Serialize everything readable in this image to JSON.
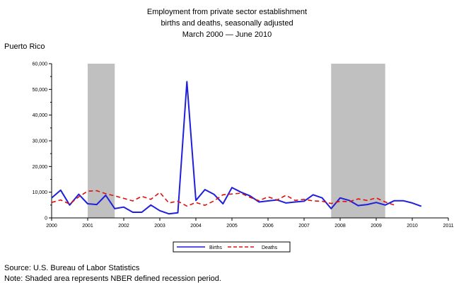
{
  "chart_data": {
    "type": "line",
    "title": [
      "Employment from private sector establishment",
      "births and deaths, seasonally adjusted",
      "March 2000 — June 2010"
    ],
    "region": "Puerto Rico",
    "ylim": [
      0,
      60000
    ],
    "yticks": [
      0,
      10000,
      20000,
      30000,
      40000,
      50000,
      60000
    ],
    "ytick_labels": [
      "0",
      "10,000",
      "20,000",
      "30,000",
      "40,000",
      "50,000",
      "60,000"
    ],
    "xlim": [
      2000,
      2011
    ],
    "xticks": [
      2000,
      2001,
      2002,
      2003,
      2004,
      2005,
      2006,
      2007,
      2008,
      2009,
      2010,
      2011
    ],
    "xtick_labels": [
      "2000",
      "2001",
      "2002",
      "2003",
      "2004",
      "2005",
      "2006",
      "2007",
      "2008",
      "2009",
      "2010",
      "2011"
    ],
    "recessions": [
      [
        2001.0,
        2001.75
      ],
      [
        2007.75,
        2009.25
      ]
    ],
    "legend_position": "bottom",
    "series": [
      {
        "name": "Births",
        "color": "#1f1fdc",
        "style": "solid",
        "x": [
          2000.0,
          2000.25,
          2000.5,
          2000.75,
          2001.0,
          2001.25,
          2001.5,
          2001.75,
          2002.0,
          2002.25,
          2002.5,
          2002.75,
          2003.0,
          2003.25,
          2003.5,
          2003.75,
          2004.0,
          2004.25,
          2004.5,
          2004.75,
          2005.0,
          2005.25,
          2005.5,
          2005.75,
          2006.0,
          2006.25,
          2006.5,
          2006.75,
          2007.0,
          2007.25,
          2007.5,
          2007.75,
          2008.0,
          2008.25,
          2008.5,
          2008.75,
          2009.0,
          2009.25,
          2009.5,
          2009.75,
          2010.0,
          2010.25
        ],
        "y": [
          7800,
          10800,
          5000,
          9200,
          5500,
          5200,
          8800,
          3600,
          4200,
          2200,
          2200,
          5000,
          2800,
          1600,
          2000,
          53000,
          6800,
          11000,
          9200,
          5500,
          11800,
          10000,
          8600,
          6200,
          6600,
          7000,
          5800,
          6200,
          6500,
          9000,
          7800,
          3600,
          7800,
          6800,
          4800,
          5200,
          6000,
          5000,
          6700,
          6700,
          5800,
          4500
        ]
      },
      {
        "name": "Deaths",
        "color": "#e01010",
        "style": "dashed",
        "x": [
          2000.0,
          2000.25,
          2000.5,
          2000.75,
          2001.0,
          2001.25,
          2001.5,
          2001.75,
          2002.0,
          2002.25,
          2002.5,
          2002.75,
          2003.0,
          2003.25,
          2003.5,
          2003.75,
          2004.0,
          2004.25,
          2004.5,
          2004.75,
          2005.0,
          2005.25,
          2005.5,
          2005.75,
          2006.0,
          2006.25,
          2006.5,
          2006.75,
          2007.0,
          2007.25,
          2007.5,
          2007.75,
          2008.0,
          2008.25,
          2008.5,
          2008.75,
          2009.0,
          2009.25,
          2009.5
        ],
        "y": [
          6000,
          7000,
          5400,
          8200,
          10400,
          10600,
          9400,
          8600,
          7600,
          6600,
          8400,
          7200,
          9900,
          5800,
          6500,
          4600,
          6000,
          4900,
          6600,
          9000,
          9300,
          9600,
          8000,
          6700,
          8200,
          7000,
          8800,
          6800,
          7200,
          6600,
          6500,
          5600,
          6500,
          6300,
          7400,
          6800,
          7800,
          6200,
          5000
        ]
      }
    ]
  },
  "source_text": "Source: U.S. Bureau of Labor Statistics",
  "note_text": "Note: Shaded area represents NBER defined recession period."
}
